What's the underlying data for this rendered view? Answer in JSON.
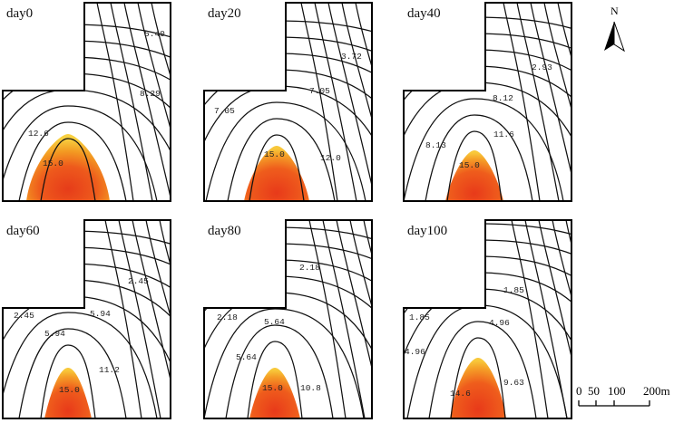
{
  "panels": [
    {
      "id": "day0",
      "title": "day0",
      "labels": [
        "5.40",
        "8.29",
        "12.6",
        "15.0"
      ]
    },
    {
      "id": "day20",
      "title": "day20",
      "labels": [
        "3.72",
        "7.05",
        "7.05",
        "12.0",
        "15.0"
      ]
    },
    {
      "id": "day40",
      "title": "day40",
      "labels": [
        "2.93",
        "8.12",
        "8.13",
        "11.6",
        "15.0"
      ]
    },
    {
      "id": "day60",
      "title": "day60",
      "labels": [
        "2.45",
        "2.45",
        "5.94",
        "5.94",
        "11.2",
        "15.0"
      ]
    },
    {
      "id": "day80",
      "title": "day80",
      "labels": [
        "2.18",
        "2.18",
        "5.64",
        "5.64",
        "10.8",
        "15.0"
      ]
    },
    {
      "id": "day100",
      "title": "day100",
      "labels": [
        "1.85",
        "1.85",
        "4.96",
        "4.96",
        "9.63",
        "14.6"
      ]
    }
  ],
  "north_arrow": {
    "letter": "N"
  },
  "scale_bar": {
    "ticks": [
      "0",
      "50",
      "100",
      "200m"
    ]
  },
  "colors": {
    "hot_core": "#e8401c",
    "mid": "#f07a1a",
    "outer": "#f7c636",
    "line": "#111111"
  }
}
